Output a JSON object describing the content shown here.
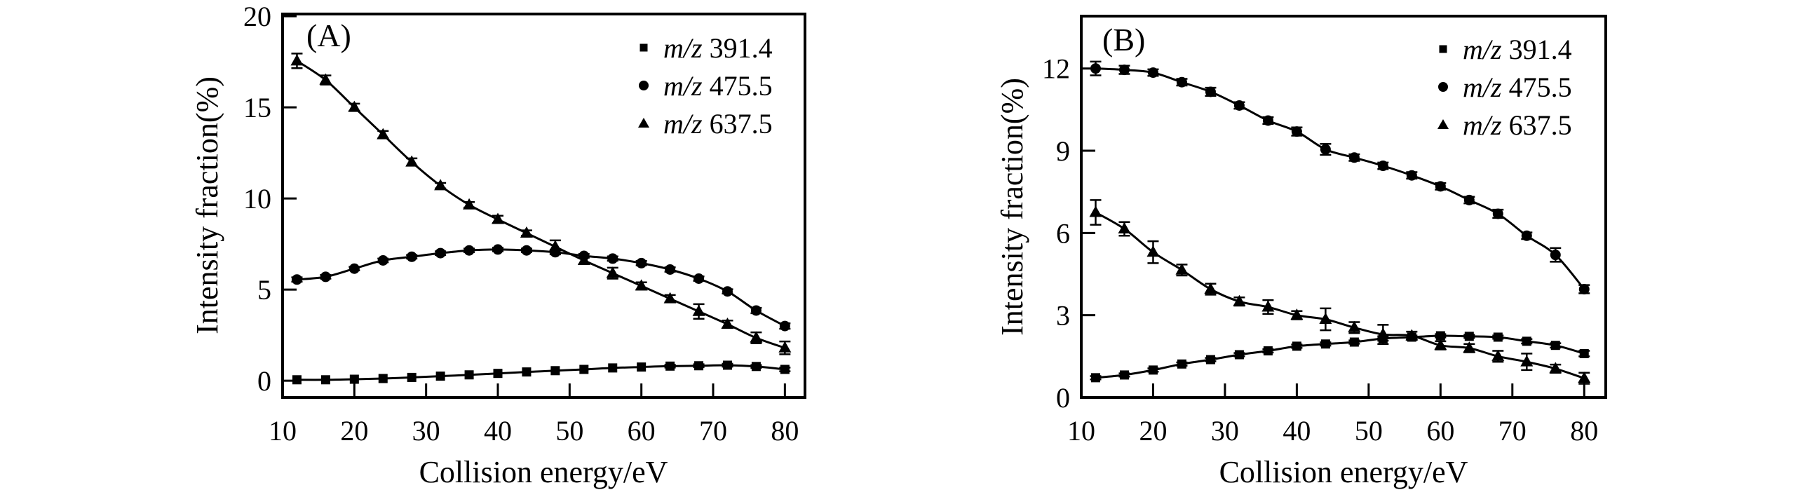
{
  "figure": {
    "background": "#ffffff",
    "ink_color": "#000000"
  },
  "chart_data": [
    {
      "panel": "(A)",
      "type": "line",
      "title": "",
      "xlabel": "Collision energy/eV",
      "ylabel": "Intensity fraction(%)",
      "xlim": [
        10,
        82.8
      ],
      "ylim": [
        -0.92,
        20.12
      ],
      "xticks": [
        10,
        20,
        30,
        40,
        50,
        60,
        70,
        80
      ],
      "yticks": [
        0,
        5,
        10,
        15,
        20
      ],
      "grid": false,
      "legend_position": "top-right",
      "x": [
        12,
        16,
        20,
        24,
        28,
        32,
        36,
        40,
        44,
        48,
        52,
        56,
        60,
        64,
        68,
        72,
        76,
        80
      ],
      "series": [
        {
          "name": "m/z 391.4",
          "marker": "square",
          "values": [
            0.05,
            0.05,
            0.08,
            0.12,
            0.18,
            0.25,
            0.32,
            0.4,
            0.48,
            0.55,
            0.62,
            0.7,
            0.75,
            0.8,
            0.82,
            0.85,
            0.78,
            0.62
          ],
          "errors": [
            0.05,
            0.05,
            0.05,
            0.05,
            0.05,
            0.05,
            0.05,
            0.06,
            0.06,
            0.06,
            0.06,
            0.07,
            0.07,
            0.08,
            0.08,
            0.08,
            0.08,
            0.1
          ]
        },
        {
          "name": "m/z 475.5",
          "marker": "circle",
          "values": [
            5.55,
            5.7,
            6.15,
            6.6,
            6.8,
            7.0,
            7.15,
            7.2,
            7.15,
            7.05,
            6.85,
            6.7,
            6.45,
            6.1,
            5.6,
            4.9,
            3.85,
            3.0
          ],
          "errors": [
            0.12,
            0.1,
            0.1,
            0.1,
            0.1,
            0.1,
            0.1,
            0.1,
            0.1,
            0.12,
            0.1,
            0.12,
            0.12,
            0.12,
            0.12,
            0.12,
            0.15,
            0.15
          ]
        },
        {
          "name": "m/z 637.5",
          "marker": "triangle",
          "values": [
            17.55,
            16.5,
            15.0,
            13.5,
            12.0,
            10.7,
            9.65,
            8.85,
            8.1,
            7.35,
            6.6,
            5.9,
            5.2,
            4.5,
            3.8,
            3.1,
            2.35,
            1.8
          ],
          "errors": [
            0.4,
            0.25,
            0.2,
            0.2,
            0.2,
            0.15,
            0.15,
            0.2,
            0.15,
            0.35,
            0.2,
            0.3,
            0.2,
            0.2,
            0.4,
            0.2,
            0.3,
            0.35
          ]
        }
      ]
    },
    {
      "panel": "(B)",
      "type": "line",
      "title": "",
      "xlabel": "Collision energy/eV",
      "ylabel": "Intensity fraction(%)",
      "xlim": [
        10,
        83
      ],
      "ylim": [
        0,
        13.91
      ],
      "xticks": [
        10,
        20,
        30,
        40,
        50,
        60,
        70,
        80
      ],
      "yticks": [
        0,
        3,
        6,
        9,
        12
      ],
      "grid": false,
      "legend_position": "top-right",
      "x": [
        12,
        16,
        20,
        24,
        28,
        32,
        36,
        40,
        44,
        48,
        52,
        56,
        60,
        64,
        68,
        72,
        76,
        80
      ],
      "series": [
        {
          "name": "m/z 391.4",
          "marker": "square",
          "values": [
            0.72,
            0.82,
            1.0,
            1.22,
            1.38,
            1.56,
            1.7,
            1.87,
            1.95,
            2.02,
            2.15,
            2.2,
            2.25,
            2.23,
            2.2,
            2.05,
            1.9,
            1.6
          ],
          "errors": [
            0.06,
            0.06,
            0.06,
            0.06,
            0.06,
            0.06,
            0.06,
            0.06,
            0.06,
            0.06,
            0.08,
            0.06,
            0.06,
            0.06,
            0.06,
            0.08,
            0.08,
            0.1
          ]
        },
        {
          "name": "m/z 475.5",
          "marker": "circle",
          "values": [
            12.0,
            11.95,
            11.85,
            11.5,
            11.15,
            10.65,
            10.1,
            9.7,
            9.05,
            8.75,
            8.45,
            8.1,
            7.7,
            7.2,
            6.7,
            5.9,
            5.2,
            3.95
          ],
          "errors": [
            0.25,
            0.15,
            0.12,
            0.12,
            0.15,
            0.12,
            0.12,
            0.15,
            0.2,
            0.12,
            0.12,
            0.12,
            0.12,
            0.12,
            0.15,
            0.12,
            0.25,
            0.15
          ]
        },
        {
          "name": "m/z 637.5",
          "marker": "triangle",
          "values": [
            6.75,
            6.15,
            5.3,
            4.65,
            3.95,
            3.5,
            3.3,
            3.0,
            2.85,
            2.55,
            2.3,
            2.25,
            1.9,
            1.8,
            1.5,
            1.3,
            1.05,
            0.7
          ],
          "errors": [
            0.45,
            0.25,
            0.4,
            0.2,
            0.2,
            0.15,
            0.25,
            0.15,
            0.4,
            0.2,
            0.35,
            0.15,
            0.15,
            0.15,
            0.2,
            0.3,
            0.15,
            0.2
          ]
        }
      ]
    }
  ]
}
